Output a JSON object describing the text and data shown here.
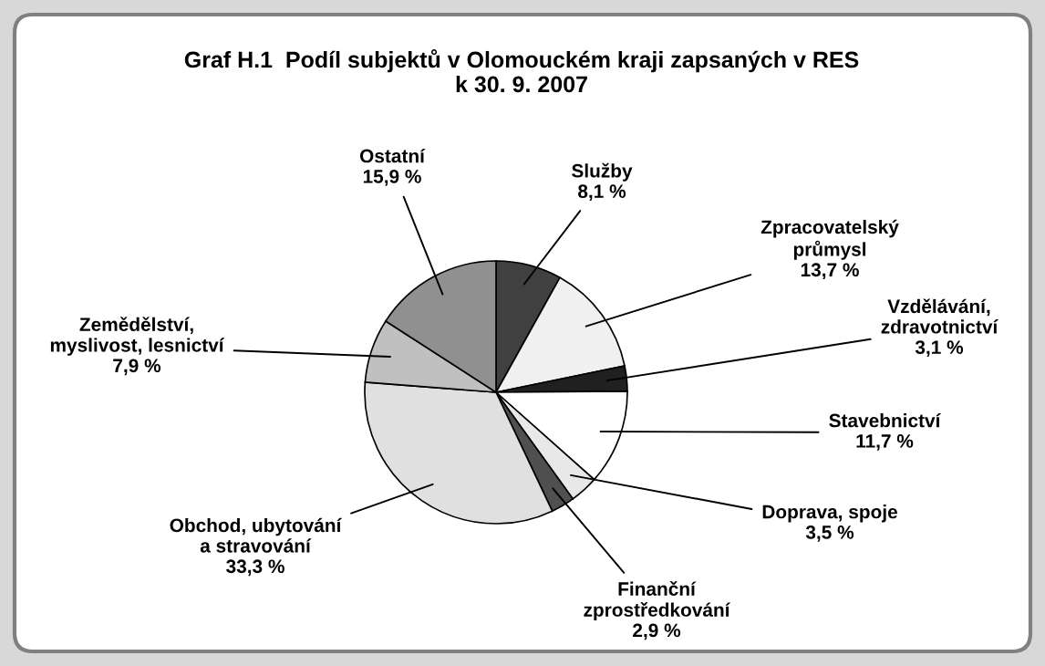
{
  "chart_data": {
    "type": "pie",
    "title": "Graf H.1  Podíl subjektů v Olomouckém kraji zapsaných v RES\nk 30. 9. 2007",
    "categories": [
      "Služby",
      "Zpracovatelský\nprůmysl",
      "Vzdělávání,\nzdravotnictví",
      "Stavebnictví",
      "Doprava, spoje",
      "Finanční\nzprostředkování",
      "Obchod, ubytování\na stravování",
      "Zemědělství,\nmyslivost, lesnictví",
      "Ostatní"
    ],
    "values": [
      8.1,
      13.7,
      3.1,
      11.7,
      3.5,
      2.9,
      33.3,
      7.9,
      15.9
    ],
    "value_labels": [
      "8,1 %",
      "13,7 %",
      "3,1 %",
      "11,7 %",
      "3,5 %",
      "2,9 %",
      "33,3 %",
      "7,9 %",
      "15,9 %"
    ],
    "colors": [
      "#404040",
      "#f0f0f0",
      "#202020",
      "#ffffff",
      "#e8e8e8",
      "#505050",
      "#e0e0e0",
      "#c0c0c0",
      "#909090"
    ],
    "legend": false
  }
}
